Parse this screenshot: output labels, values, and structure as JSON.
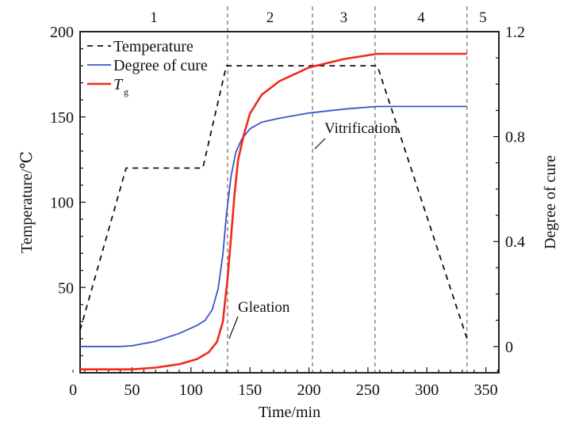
{
  "chart_data": {
    "type": "line",
    "xlabel": "Time/min",
    "ylabel": "Temperature/℃",
    "y2label": "Degree of cure",
    "xlim": [
      6,
      361
    ],
    "ylim": [
      0,
      200
    ],
    "y2lim": [
      -0.1,
      1.2
    ],
    "xticks": [
      0,
      50,
      100,
      150,
      200,
      250,
      300,
      350
    ],
    "yticks": [
      50,
      100,
      150,
      200
    ],
    "y2ticks": [
      0,
      0.4,
      0.8,
      1.2
    ],
    "grid": false,
    "legend_position": "top-left",
    "legend": [
      "Temperature",
      "Degree of cure",
      "T",
      "g"
    ],
    "series": [
      {
        "name": "Temperature",
        "axis": "left",
        "color": "#111111",
        "style": "dashed",
        "points": [
          [
            6,
            25
          ],
          [
            45,
            120
          ],
          [
            110,
            120
          ],
          [
            130,
            180
          ],
          [
            258,
            180
          ],
          [
            334,
            20
          ]
        ]
      },
      {
        "name": "Degree of cure",
        "axis": "right",
        "color": "#3a55c8",
        "style": "solid",
        "points": [
          [
            6,
            0
          ],
          [
            40,
            0
          ],
          [
            50,
            0.003
          ],
          [
            70,
            0.02
          ],
          [
            90,
            0.05
          ],
          [
            105,
            0.08
          ],
          [
            112,
            0.1
          ],
          [
            118,
            0.14
          ],
          [
            123,
            0.22
          ],
          [
            127,
            0.35
          ],
          [
            130,
            0.5
          ],
          [
            134,
            0.65
          ],
          [
            138,
            0.74
          ],
          [
            143,
            0.79
          ],
          [
            150,
            0.83
          ],
          [
            160,
            0.855
          ],
          [
            175,
            0.87
          ],
          [
            200,
            0.89
          ],
          [
            230,
            0.905
          ],
          [
            258,
            0.915
          ],
          [
            334,
            0.915
          ]
        ]
      },
      {
        "name": "Tg",
        "axis": "left",
        "color": "#f02a1a",
        "style": "solid",
        "points": [
          [
            6,
            2
          ],
          [
            50,
            2
          ],
          [
            70,
            3
          ],
          [
            90,
            5
          ],
          [
            105,
            8
          ],
          [
            115,
            12
          ],
          [
            122,
            18
          ],
          [
            127,
            30
          ],
          [
            131,
            55
          ],
          [
            134,
            80
          ],
          [
            137,
            105
          ],
          [
            140,
            125
          ],
          [
            145,
            140
          ],
          [
            150,
            152
          ],
          [
            160,
            163
          ],
          [
            175,
            171
          ],
          [
            200,
            179
          ],
          [
            230,
            184
          ],
          [
            258,
            187
          ],
          [
            334,
            187
          ]
        ]
      }
    ],
    "stage_boundaries": [
      131,
      203,
      256,
      334
    ],
    "stage_labels": [
      "1",
      "2",
      "3",
      "4",
      "5"
    ],
    "annotations": [
      {
        "text": "Gleation",
        "at": [
          131,
          20
        ]
      },
      {
        "text": "Vitrification",
        "at": [
          203,
          130
        ]
      }
    ]
  }
}
